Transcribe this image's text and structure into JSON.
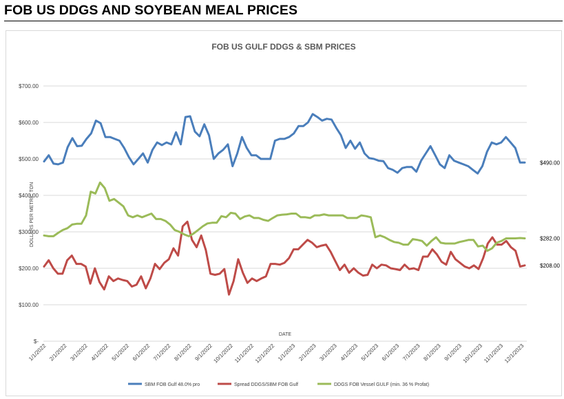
{
  "page": {
    "title": "FOB US DDGS AND SOYBEAN MEAL PRICES"
  },
  "chart_data": {
    "type": "line",
    "title": "FOB US GULF DDGS & SBM PRICES",
    "xlabel": "DATE",
    "ylabel": "DOLLARS PER METRIC TON",
    "ylim": [
      0,
      700
    ],
    "yticks": [
      {
        "value": 0,
        "label": "$-"
      },
      {
        "value": 100,
        "label": "$100.00"
      },
      {
        "value": 200,
        "label": "$200.00"
      },
      {
        "value": 300,
        "label": "$300.00"
      },
      {
        "value": 400,
        "label": "$400.00"
      },
      {
        "value": 500,
        "label": "$500.00"
      },
      {
        "value": 600,
        "label": "$600.00"
      },
      {
        "value": 700,
        "label": "$700.00"
      }
    ],
    "xticks": [
      "1/1/2022",
      "2/1/2022",
      "3/1/2022",
      "4/1/2022",
      "5/1/2022",
      "6/1/2022",
      "7/1/2022",
      "8/1/2022",
      "9/1/2022",
      "10/1/2022",
      "11/1/2022",
      "12/1/2022",
      "1/1/2023",
      "2/1/2023",
      "3/1/2023",
      "4/1/2023",
      "5/1/2023",
      "6/1/2023",
      "7/1/2023",
      "8/1/2023",
      "9/1/2023",
      "10/1/2023",
      "11/1/2023",
      "12/1/2023"
    ],
    "grid": true,
    "legend_position": "bottom",
    "series": [
      {
        "name": "SBM FOB Gulf 48.0% pro",
        "color": "#4a7ebb",
        "end_label": "$490.00",
        "values": [
          493,
          510,
          487,
          485,
          490,
          532,
          557,
          535,
          536,
          555,
          570,
          605,
          598,
          560,
          560,
          555,
          550,
          530,
          505,
          485,
          500,
          515,
          490,
          525,
          545,
          538,
          545,
          540,
          573,
          540,
          615,
          617,
          575,
          562,
          595,
          565,
          500,
          515,
          525,
          540,
          480,
          515,
          560,
          530,
          510,
          510,
          500,
          500,
          500,
          550,
          555,
          555,
          560,
          570,
          590,
          590,
          600,
          623,
          615,
          605,
          610,
          608,
          585,
          565,
          530,
          550,
          528,
          545,
          515,
          502,
          500,
          495,
          494,
          475,
          470,
          462,
          475,
          478,
          478,
          465,
          495,
          515,
          535,
          510,
          485,
          475,
          510,
          495,
          490,
          485,
          480,
          470,
          460,
          480,
          520,
          545,
          540,
          545,
          560,
          545,
          530,
          490,
          490
        ]
      },
      {
        "name": "Spread DDGS/SBM FOB Gulf",
        "color": "#be4b48",
        "end_label": "$208.00",
        "values": [
          205,
          222,
          200,
          185,
          185,
          222,
          235,
          212,
          212,
          205,
          158,
          200,
          162,
          142,
          178,
          165,
          172,
          168,
          165,
          150,
          155,
          178,
          145,
          172,
          212,
          198,
          215,
          225,
          255,
          235,
          315,
          328,
          278,
          258,
          290,
          250,
          185,
          182,
          185,
          198,
          128,
          165,
          225,
          188,
          160,
          172,
          165,
          172,
          178,
          212,
          212,
          210,
          215,
          228,
          252,
          252,
          265,
          278,
          270,
          258,
          262,
          265,
          245,
          220,
          195,
          210,
          188,
          200,
          188,
          180,
          182,
          210,
          200,
          210,
          208,
          200,
          198,
          195,
          210,
          198,
          200,
          195,
          232,
          232,
          252,
          238,
          218,
          210,
          245,
          225,
          215,
          205,
          200,
          208,
          198,
          228,
          268,
          285,
          265,
          265,
          275,
          258,
          248,
          205,
          208
        ]
      },
      {
        "name": "DDGS FOB Vessel GULF  (min. 36 % Profat)",
        "color": "#9bbb59",
        "end_label": "$282.00",
        "values": [
          290,
          288,
          288,
          297,
          305,
          310,
          320,
          322,
          322,
          345,
          410,
          405,
          435,
          420,
          385,
          390,
          380,
          370,
          345,
          340,
          345,
          340,
          345,
          350,
          335,
          335,
          330,
          320,
          305,
          300,
          293,
          288,
          295,
          305,
          315,
          323,
          325,
          325,
          343,
          340,
          352,
          350,
          335,
          342,
          345,
          338,
          338,
          333,
          330,
          338,
          345,
          347,
          348,
          350,
          350,
          340,
          340,
          338,
          345,
          345,
          348,
          345,
          345,
          345,
          345,
          338,
          338,
          338,
          345,
          343,
          340,
          285,
          290,
          285,
          278,
          272,
          270,
          265,
          265,
          280,
          278,
          275,
          262,
          275,
          285,
          270,
          268,
          268,
          268,
          272,
          275,
          278,
          278,
          260,
          262,
          248,
          255,
          270,
          275,
          282,
          282,
          282,
          283,
          282
        ]
      }
    ]
  }
}
